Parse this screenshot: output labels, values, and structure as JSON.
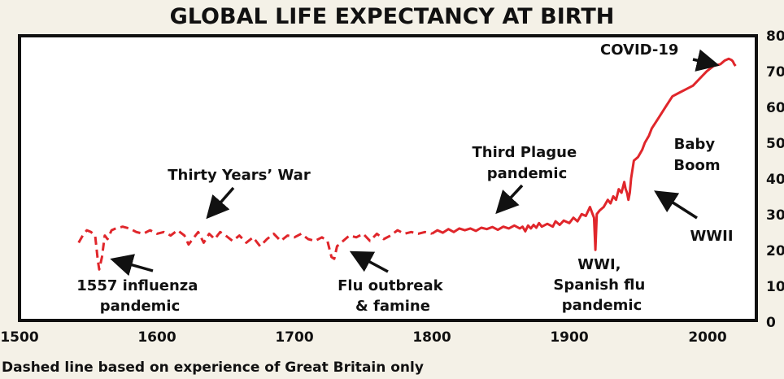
{
  "chart_data": {
    "type": "line",
    "title": "GLOBAL LIFE EXPECTANCY AT BIRTH",
    "footnote": "Dashed line based on experience of Great Britain only",
    "xlabel": "",
    "ylabel": "",
    "xlim": [
      1500,
      2025
    ],
    "ylim": [
      0,
      80
    ],
    "x_ticks": [
      "1500",
      "1600",
      "1700",
      "1800",
      "1900",
      "2000"
    ],
    "y_ticks": [
      "0",
      "10",
      "20",
      "30",
      "40",
      "50",
      "60",
      "70",
      "80"
    ],
    "grid": false,
    "line_color": "#e0262b",
    "series": [
      {
        "style": "dashed",
        "x": [
          1543,
          1546,
          1549,
          1552,
          1555,
          1557,
          1558,
          1560,
          1562,
          1564,
          1567,
          1570,
          1575,
          1580,
          1585,
          1590,
          1595,
          1600,
          1605,
          1610,
          1615,
          1620,
          1623,
          1626,
          1630,
          1634,
          1638,
          1642,
          1646,
          1650,
          1655,
          1660,
          1665,
          1670,
          1675,
          1680,
          1685,
          1690,
          1695,
          1700,
          1705,
          1710,
          1715,
          1720,
          1724,
          1727,
          1729,
          1731,
          1734,
          1737,
          1740,
          1745,
          1750,
          1755,
          1760,
          1765,
          1770,
          1775,
          1780,
          1785,
          1790,
          1795,
          1800
        ],
        "y": [
          22,
          24,
          25.5,
          25,
          24,
          17,
          14.5,
          18,
          24,
          23,
          25.5,
          26,
          26.5,
          26,
          25,
          24.5,
          25.5,
          24.5,
          25,
          24,
          25.5,
          24,
          21.5,
          23,
          25,
          22,
          24.5,
          23,
          25,
          24,
          22.5,
          24,
          22,
          23.5,
          21,
          23,
          24.5,
          22.5,
          24,
          23.5,
          24.5,
          23,
          22.5,
          23.5,
          22.5,
          18,
          17.5,
          21,
          22,
          23,
          24,
          23.5,
          24.5,
          22.5,
          24.5,
          23,
          24,
          25.5,
          24.5,
          25,
          24.5,
          25,
          24.5
        ]
      },
      {
        "style": "solid",
        "x": [
          1800,
          1804,
          1808,
          1812,
          1816,
          1820,
          1824,
          1828,
          1832,
          1836,
          1840,
          1844,
          1848,
          1852,
          1856,
          1860,
          1864,
          1866,
          1868,
          1870,
          1872,
          1874,
          1876,
          1878,
          1880,
          1884,
          1888,
          1890,
          1893,
          1896,
          1900,
          1903,
          1906,
          1909,
          1912,
          1915,
          1917,
          1918,
          1919,
          1920,
          1922,
          1925,
          1928,
          1930,
          1932,
          1934,
          1936,
          1938,
          1940,
          1941,
          1942,
          1943,
          1944,
          1945,
          1947,
          1950,
          1953,
          1955,
          1958,
          1960,
          1965,
          1970,
          1975,
          1980,
          1985,
          1990,
          1995,
          2000,
          2005,
          2010,
          2013,
          2016,
          2018,
          2019,
          2020,
          2021
        ],
        "y": [
          24.5,
          25.5,
          24.8,
          25.8,
          25,
          26,
          25.5,
          26,
          25.3,
          26.2,
          25.8,
          26.4,
          25.6,
          26.5,
          26,
          26.8,
          26,
          26.5,
          25.2,
          26.8,
          26,
          27,
          26.2,
          27.5,
          26.5,
          27.3,
          26.5,
          28,
          27,
          28.2,
          27.5,
          29,
          28,
          30,
          29.5,
          32,
          30,
          29,
          20,
          30,
          31,
          32,
          34,
          33,
          35,
          34,
          37,
          36,
          39,
          37,
          36,
          34,
          36,
          40,
          45,
          46,
          48,
          50,
          52,
          54,
          57,
          60,
          63,
          64,
          65,
          66,
          68,
          70,
          71.5,
          72,
          73,
          73.5,
          73.2,
          72.8,
          72,
          71.5
        ]
      }
    ],
    "annotations": [
      {
        "lines": [
          "COVID-19"
        ]
      },
      {
        "lines": [
          "Baby",
          "Boom"
        ]
      },
      {
        "lines": [
          "WWII"
        ]
      },
      {
        "lines": [
          "Third Plague",
          "pandemic"
        ]
      },
      {
        "lines": [
          "Thirty Years’ War"
        ]
      },
      {
        "lines": [
          "1557 influenza",
          "pandemic"
        ]
      },
      {
        "lines": [
          "Flu outbreak",
          "& famine"
        ]
      },
      {
        "lines": [
          "WWI,",
          "Spanish flu",
          "pandemic"
        ]
      }
    ]
  }
}
